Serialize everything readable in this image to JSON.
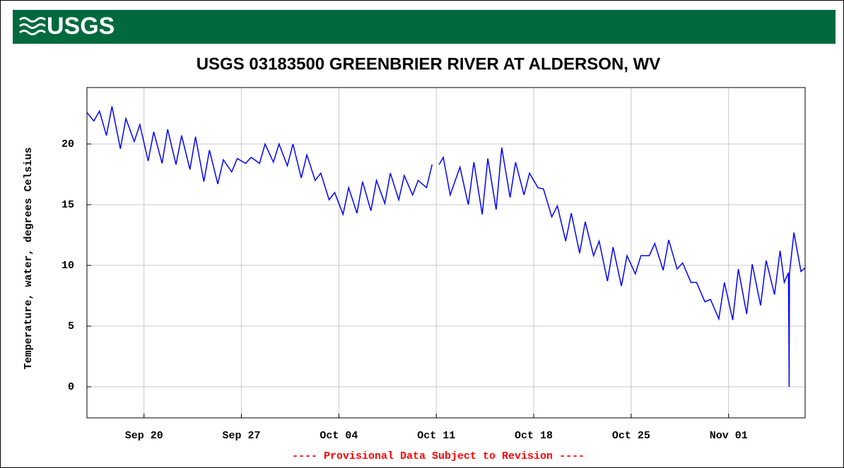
{
  "chart_data": {
    "type": "line",
    "logo": "USGS",
    "title": "USGS 03183500 GREENBRIER RIVER AT ALDERSON, WV",
    "ylabel": "Temperature, water, degrees Celsius",
    "annotation": "---- Provisional Data Subject to Revision ----",
    "color": "#0000ff",
    "grid": true,
    "xlim": [
      15.9,
      67.5
    ],
    "xticks": [
      {
        "value": 20,
        "label": "Sep 20"
      },
      {
        "value": 27,
        "label": "Sep 27"
      },
      {
        "value": 34,
        "label": "Oct 04"
      },
      {
        "value": 41,
        "label": "Oct 11"
      },
      {
        "value": 48,
        "label": "Oct 18"
      },
      {
        "value": 55,
        "label": "Oct 25"
      },
      {
        "value": 62,
        "label": "Nov 01"
      }
    ],
    "ylim": [
      -2.56,
      24.65
    ],
    "yticks": [
      0,
      5,
      10,
      15,
      20
    ],
    "x": [
      15.9,
      16.4,
      16.8,
      17.3,
      17.7,
      18.3,
      18.7,
      19.3,
      19.7,
      20.3,
      20.7,
      21.3,
      21.7,
      22.3,
      22.7,
      23.3,
      23.7,
      24.3,
      24.7,
      25.3,
      25.7,
      26.3,
      26.7,
      27.3,
      27.7,
      28.3,
      28.7,
      29.3,
      29.7,
      30.3,
      30.7,
      31.3,
      31.7,
      32.3,
      32.7,
      33.3,
      33.7,
      34.3,
      34.7,
      35.3,
      35.7,
      36.3,
      36.7,
      37.3,
      37.7,
      38.3,
      38.7,
      39.3,
      39.7,
      40.3,
      40.7,
      40.9,
      41.2,
      41.5,
      42.0,
      42.7,
      43.3,
      43.7,
      44.3,
      44.7,
      45.3,
      45.7,
      46.3,
      46.7,
      47.3,
      47.7,
      48.3,
      48.7,
      49.3,
      49.7,
      50.3,
      50.7,
      51.3,
      51.7,
      52.3,
      52.7,
      53.3,
      53.7,
      54.3,
      54.7,
      55.3,
      55.7,
      56.3,
      56.7,
      57.3,
      57.7,
      58.3,
      58.7,
      59.3,
      59.7,
      60.3,
      60.7,
      61.3,
      61.7,
      62.3,
      62.7,
      63.3,
      63.7,
      64.3,
      64.7,
      65.3,
      65.7,
      66.0,
      66.3,
      66.33,
      66.35,
      66.37,
      66.7,
      67.2,
      67.5
    ],
    "values": [
      22.6,
      21.9,
      22.7,
      20.7,
      23.1,
      19.6,
      22.1,
      20.2,
      21.6,
      18.6,
      21.0,
      18.4,
      21.2,
      18.3,
      20.7,
      17.9,
      20.6,
      16.9,
      19.5,
      16.7,
      18.7,
      17.7,
      18.8,
      18.4,
      18.9,
      18.4,
      20.0,
      18.5,
      20.0,
      18.2,
      20.0,
      17.2,
      19.1,
      17.0,
      17.6,
      15.4,
      16.0,
      14.2,
      16.4,
      14.3,
      16.9,
      14.5,
      17.0,
      15.1,
      17.6,
      15.4,
      17.4,
      15.8,
      17.0,
      16.4,
      18.3,
      null,
      18.3,
      18.9,
      15.8,
      18.1,
      15.0,
      18.5,
      14.2,
      18.8,
      14.6,
      19.7,
      15.6,
      18.5,
      15.8,
      17.6,
      16.4,
      16.3,
      14.0,
      14.9,
      12.0,
      14.3,
      11.0,
      13.6,
      10.8,
      12.0,
      8.7,
      11.5,
      8.3,
      10.8,
      9.3,
      10.8,
      10.8,
      11.8,
      9.6,
      12.1,
      9.7,
      10.2,
      8.6,
      8.6,
      7.0,
      7.2,
      5.6,
      8.6,
      5.5,
      9.7,
      6.0,
      10.1,
      6.7,
      10.4,
      7.6,
      11.2,
      8.6,
      9.4,
      4.6,
      0.0,
      9.3,
      12.7,
      9.5,
      9.8
    ]
  }
}
